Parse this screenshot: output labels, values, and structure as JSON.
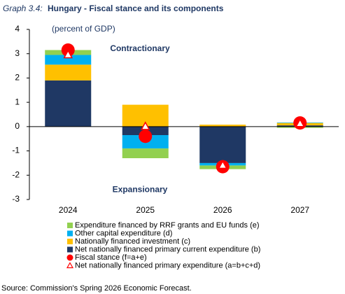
{
  "chart_data": {
    "type": "bar",
    "graph_label": "Graph 3.4:",
    "title": "Hungary - Fiscal stance and its components",
    "subtitle": "(percent of GDP)",
    "annotations": [
      "Contractionary",
      "Expansionary"
    ],
    "categories": [
      "2024",
      "2025",
      "2026",
      "2027"
    ],
    "series": [
      {
        "name": "Expenditure financed by RRF grants and EU funds (e)",
        "color": "#92d050",
        "values": [
          0.2,
          -0.4,
          -0.15,
          -0.05
        ]
      },
      {
        "name": "Other capital expenditure (d)",
        "color": "#00b0f0",
        "values": [
          0.4,
          -0.55,
          -0.1,
          0.02
        ]
      },
      {
        "name": "Nationally financed investment (c)",
        "color": "#ffc000",
        "values": [
          0.65,
          0.9,
          0.08,
          0.1
        ]
      },
      {
        "name": "Net nationally financed  primary current expenditure (b)",
        "color": "#1f3864",
        "values": [
          1.9,
          -0.35,
          -1.5,
          0.05
        ]
      },
      {
        "name": "Fiscal stance (f=a+e)",
        "color": "#ff0000",
        "marker": "circle",
        "values": [
          3.15,
          -0.4,
          -1.65,
          0.15
        ]
      },
      {
        "name": "Net nationally financed  primary expenditure (a=b+c+d)",
        "color": "#ff0000",
        "marker": "triangle",
        "values": [
          2.95,
          0,
          -1.6,
          0.12
        ]
      }
    ],
    "ylim": [
      -3,
      4
    ],
    "yticks": [
      -3,
      -2,
      -1,
      0,
      1,
      2,
      3,
      4
    ],
    "source": "Source: Commission's Spring 2026 Economic Forecast."
  }
}
